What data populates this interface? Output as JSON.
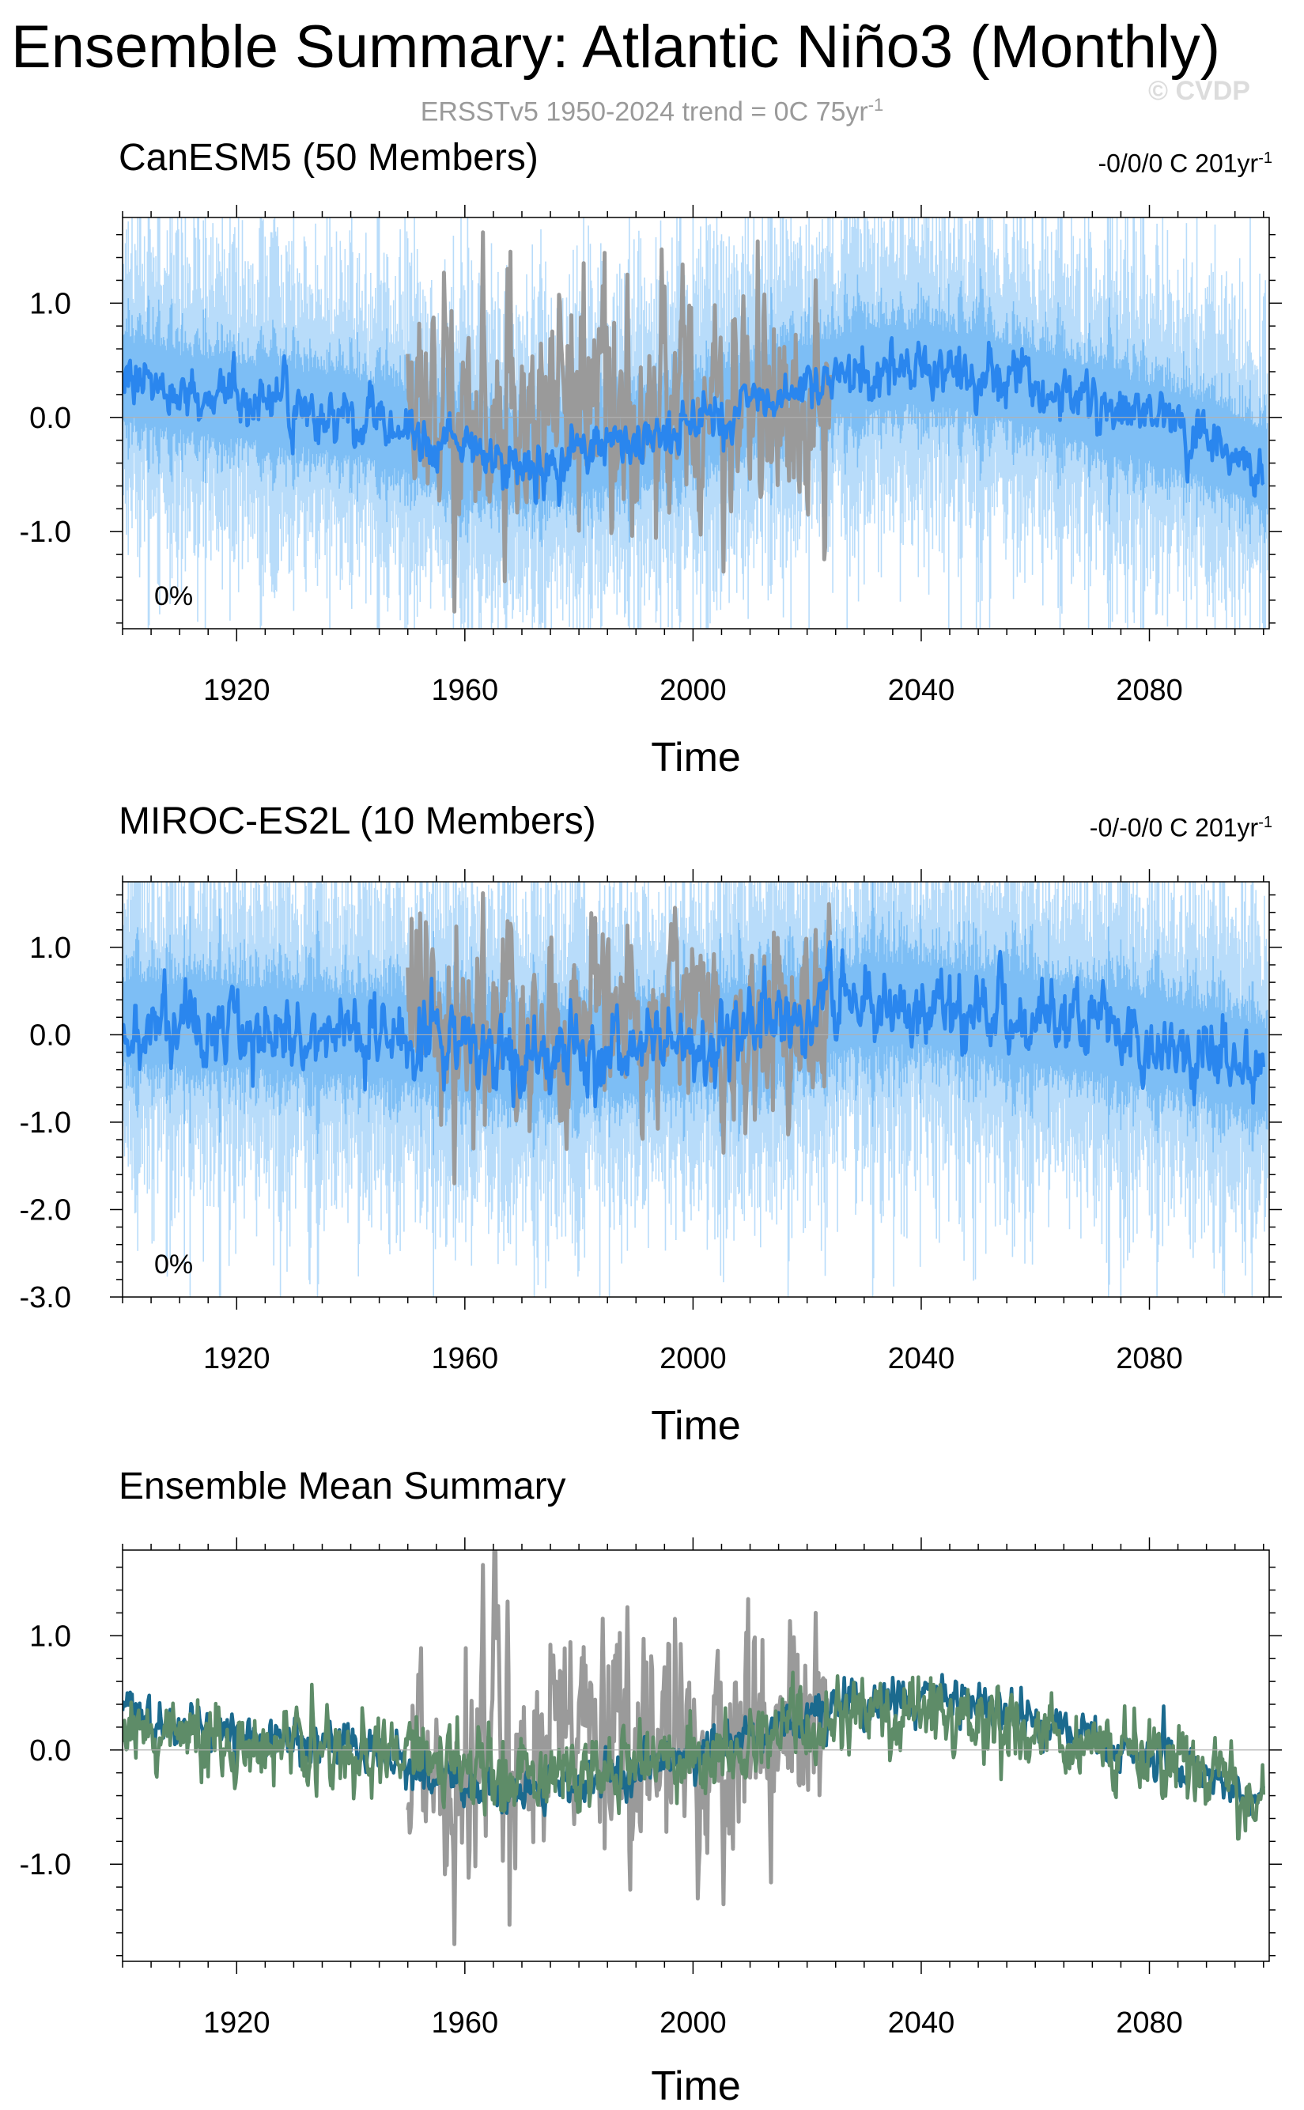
{
  "figure": {
    "title": "Ensemble Summary: Atlantic Niño3 (Monthly)",
    "subtitle_main": "ERSSTv5 1950-2024 trend = 0C 75yr",
    "subtitle_sup": "-1",
    "watermark": "© CVDP"
  },
  "colors": {
    "observed": "#9a9a9a",
    "ensemble_mean": "#2a86ee",
    "member_spread": "#7dbef5",
    "member_extremes": "#b8dcfa",
    "canesm5": "#1b6a8e",
    "miroc": "#5e8c68",
    "axis": "#000000",
    "zero_line": "#b0b0b0"
  },
  "chart_data": [
    {
      "type": "line",
      "panel_id": "canesm5",
      "title": "CanESM5 (50 Members)",
      "title_color": "#1b6a8e",
      "trend_main": "-0/0/0 C 201yr",
      "trend_sup": "-1",
      "xlabel": "Time",
      "ylabel": "",
      "xlim": [
        1900,
        2101
      ],
      "ylim": [
        -1.85,
        1.75
      ],
      "xticks": [
        1920,
        1960,
        2000,
        2040,
        2080
      ],
      "xtick_labels": [
        "1920",
        "1960",
        "2000",
        "2040",
        "2080"
      ],
      "yticks": [
        1.0,
        0.0,
        -1.0
      ],
      "ytick_labels": [
        "1.0",
        "0.0",
        "-1.0"
      ],
      "percent_label": "0%",
      "series": [
        {
          "name": "CanESM5 ensemble mean",
          "kind": "mean",
          "x": [
            1900,
            1910,
            1920,
            1930,
            1940,
            1950,
            1960,
            1970,
            1980,
            1990,
            2000,
            2010,
            2020,
            2030,
            2040,
            2050,
            2060,
            2070,
            2080,
            2090,
            2100
          ],
          "values": [
            0.35,
            0.22,
            0.15,
            0.08,
            0.02,
            -0.12,
            -0.3,
            -0.38,
            -0.3,
            -0.2,
            -0.05,
            0.12,
            0.3,
            0.42,
            0.45,
            0.38,
            0.25,
            0.1,
            -0.05,
            -0.2,
            -0.45
          ],
          "noise": 0.12
        },
        {
          "name": "CanESM5 member spread",
          "kind": "spread",
          "half_width": 0.5,
          "noise": 0.3
        },
        {
          "name": "ERSSTv5 observed",
          "kind": "observed",
          "x": [
            1950,
            1960,
            1970,
            1980,
            1990,
            2000,
            2010,
            2020,
            2024
          ],
          "values": [
            0.0,
            0.05,
            -0.05,
            -0.05,
            0.0,
            0.02,
            0.05,
            0.05,
            0.1
          ],
          "noise": 0.55,
          "peaks": [
            {
              "x": 1963.2,
              "y": 1.62
            },
            {
              "x": 1958.1,
              "y": -1.7
            },
            {
              "x": 2005.3,
              "y": -1.35
            },
            {
              "x": 1988.5,
              "y": 1.25
            },
            {
              "x": 1967.5,
              "y": 1.3
            },
            {
              "x": 2021.5,
              "y": 1.2
            },
            {
              "x": 1984.2,
              "y": 1.15
            }
          ]
        }
      ]
    },
    {
      "type": "line",
      "panel_id": "miroc",
      "title": "MIROC-ES2L (10 Members)",
      "title_color": "#5e8c68",
      "trend_main": "-0/-0/0 C 201yr",
      "trend_sup": "-1",
      "xlabel": "Time",
      "ylabel": "",
      "xlim": [
        1900,
        2101
      ],
      "ylim": [
        -3.0,
        1.75
      ],
      "xticks": [
        1920,
        1960,
        2000,
        2040,
        2080
      ],
      "xtick_labels": [
        "1920",
        "1960",
        "2000",
        "2040",
        "2080"
      ],
      "yticks": [
        1.0,
        0.0,
        -1.0,
        -2.0,
        -3.0
      ],
      "ytick_labels": [
        "1.0",
        "0.0",
        "-1.0",
        "-2.0",
        "-3.0"
      ],
      "percent_label": "0%",
      "series": [
        {
          "name": "MIROC-ES2L ensemble mean",
          "kind": "mean",
          "x": [
            1900,
            1910,
            1920,
            1930,
            1940,
            1950,
            1960,
            1970,
            1980,
            1990,
            2000,
            2010,
            2020,
            2030,
            2040,
            2050,
            2060,
            2070,
            2080,
            2090,
            2100
          ],
          "values": [
            0.15,
            0.12,
            0.1,
            0.05,
            0.0,
            -0.05,
            -0.15,
            -0.25,
            -0.2,
            -0.15,
            -0.05,
            0.05,
            0.2,
            0.35,
            0.35,
            0.25,
            0.15,
            0.05,
            -0.05,
            -0.2,
            -0.4
          ],
          "noise": 0.22
        },
        {
          "name": "MIROC-ES2L member spread",
          "kind": "spread",
          "half_width": 0.7,
          "noise": 0.45
        },
        {
          "name": "ERSSTv5 observed",
          "kind": "observed",
          "x": [
            1950,
            1960,
            1970,
            1980,
            1990,
            2000,
            2010,
            2020,
            2024
          ],
          "values": [
            0.0,
            0.05,
            -0.05,
            -0.05,
            0.0,
            0.02,
            0.05,
            0.05,
            0.1
          ],
          "noise": 0.55,
          "peaks": [
            {
              "x": 1963.2,
              "y": 1.62
            },
            {
              "x": 1958.1,
              "y": -1.7
            },
            {
              "x": 2005.3,
              "y": -1.35
            },
            {
              "x": 1988.5,
              "y": 1.25
            },
            {
              "x": 1967.5,
              "y": 1.3
            },
            {
              "x": 2021.5,
              "y": 1.2
            },
            {
              "x": 1984.2,
              "y": 1.15
            }
          ]
        }
      ]
    },
    {
      "type": "line",
      "panel_id": "summary",
      "title": "Ensemble Mean Summary",
      "title_color": "#000000",
      "trend_main": "",
      "trend_sup": "",
      "xlabel": "Time",
      "ylabel": "",
      "xlim": [
        1900,
        2101
      ],
      "ylim": [
        -1.85,
        1.75
      ],
      "xticks": [
        1920,
        1960,
        2000,
        2040,
        2080
      ],
      "xtick_labels": [
        "1920",
        "1960",
        "2000",
        "2040",
        "2080"
      ],
      "yticks": [
        1.0,
        0.0,
        -1.0
      ],
      "ytick_labels": [
        "1.0",
        "0.0",
        "-1.0"
      ],
      "percent_label": "",
      "series": [
        {
          "name": "ERSSTv5 observed",
          "kind": "observed",
          "x": [
            1950,
            1960,
            1970,
            1980,
            1990,
            2000,
            2010,
            2020,
            2024
          ],
          "values": [
            0.0,
            0.05,
            -0.05,
            -0.05,
            0.0,
            0.02,
            0.05,
            0.05,
            0.1
          ],
          "noise": 0.55,
          "peaks": [
            {
              "x": 1963.2,
              "y": 1.62
            },
            {
              "x": 1958.1,
              "y": -1.7
            },
            {
              "x": 2005.3,
              "y": -1.35
            },
            {
              "x": 1988.5,
              "y": 1.25
            },
            {
              "x": 1967.5,
              "y": 1.3
            },
            {
              "x": 2021.5,
              "y": 1.2
            },
            {
              "x": 1984.2,
              "y": 1.15
            }
          ]
        },
        {
          "name": "CanESM5 ensemble mean",
          "kind": "model_mean",
          "color_key": "canesm5",
          "x": [
            1900,
            1910,
            1920,
            1930,
            1940,
            1950,
            1960,
            1970,
            1980,
            1990,
            2000,
            2010,
            2020,
            2030,
            2040,
            2050,
            2060,
            2070,
            2080,
            2090,
            2100
          ],
          "values": [
            0.35,
            0.22,
            0.15,
            0.08,
            0.02,
            -0.12,
            -0.3,
            -0.38,
            -0.3,
            -0.2,
            -0.05,
            0.12,
            0.3,
            0.42,
            0.45,
            0.38,
            0.25,
            0.1,
            -0.05,
            -0.2,
            -0.45
          ],
          "noise": 0.1
        },
        {
          "name": "MIROC-ES2L ensemble mean",
          "kind": "model_mean",
          "color_key": "miroc",
          "x": [
            1900,
            1910,
            1920,
            1930,
            1940,
            1950,
            1960,
            1970,
            1980,
            1990,
            2000,
            2010,
            2020,
            2030,
            2040,
            2050,
            2060,
            2070,
            2080,
            2090,
            2100
          ],
          "values": [
            0.15,
            0.12,
            0.1,
            0.05,
            0.0,
            -0.05,
            -0.15,
            -0.25,
            -0.2,
            -0.15,
            -0.05,
            0.05,
            0.2,
            0.35,
            0.35,
            0.25,
            0.15,
            0.05,
            -0.05,
            -0.2,
            -0.4
          ],
          "noise": 0.17
        }
      ]
    }
  ]
}
